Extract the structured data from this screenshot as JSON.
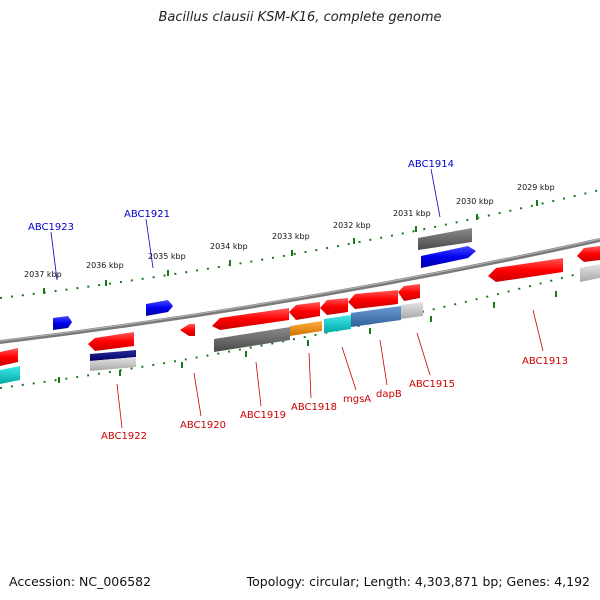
{
  "header": {
    "title": "Bacillus clausii KSM-K16, complete genome"
  },
  "footer": {
    "accession": "Accession: NC_006582",
    "topology": "Topology: circular; Length: 4,303,871 bp; Genes: 4,192"
  },
  "scale_labels": [
    "2037 kbp",
    "2036 kbp",
    "2035 kbp",
    "2034 kbp",
    "2033 kbp",
    "2032 kbp",
    "2031 kbp",
    "2030 kbp",
    "2029 kbp"
  ],
  "genes_top": [
    "ABC1923",
    "ABC1921",
    "ABC1914"
  ],
  "genes_bottom": [
    "ABC1922",
    "ABC1920",
    "ABC1919",
    "ABC1918",
    "mgsA",
    "dapB",
    "ABC1915",
    "ABC1913"
  ],
  "colors": {
    "forward_gene": "#ff0000",
    "reverse_gene_blue": "#0000ee",
    "backbone": "#808080",
    "ticks": "#1a7a1a",
    "cyan": "#00c8c8",
    "steelblue": "#4a80b8",
    "orange": "#f09010",
    "navy": "#000080",
    "label_blue": "#0000cc",
    "label_red": "#cc0000"
  }
}
